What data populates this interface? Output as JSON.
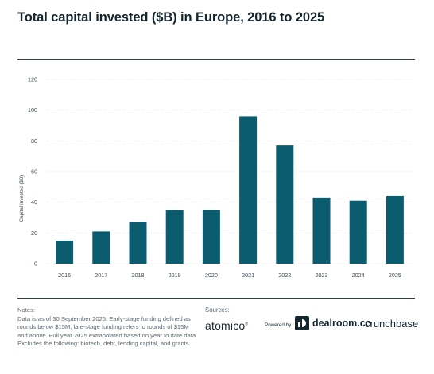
{
  "title": "Total capital invested ($B) in Europe, 2016 to 2025",
  "chart_data": {
    "type": "bar",
    "categories": [
      "2016",
      "2017",
      "2018",
      "2019",
      "2020",
      "2021",
      "2022",
      "2023",
      "2024",
      "2025"
    ],
    "values": [
      15,
      21,
      27,
      35,
      35,
      96,
      77,
      43,
      41,
      44
    ],
    "ylabel": "Capital Invested ($B)",
    "xlabel": "",
    "ylim": [
      0,
      120
    ],
    "yticks": [
      0,
      20,
      40,
      60,
      80,
      100,
      120
    ],
    "grid": true,
    "bar_color": "#0b5c6e"
  },
  "notes": {
    "title": "Notes:",
    "text": "Data is as of 30 September 2025. Early-stage funding defined as rounds below $15M, late-stage funding refers to rounds of $15M and above. Full year 2025 extrapolated based on year to date data. Excludes the following: biotech, debt, lending capital, and grants."
  },
  "sources": {
    "title": "Sources:",
    "atomico": "atomico",
    "atomico_mark": "®",
    "powered_by": "Powered by",
    "dealroom": "dealroom.co",
    "crunchbase": "crunchbase"
  }
}
